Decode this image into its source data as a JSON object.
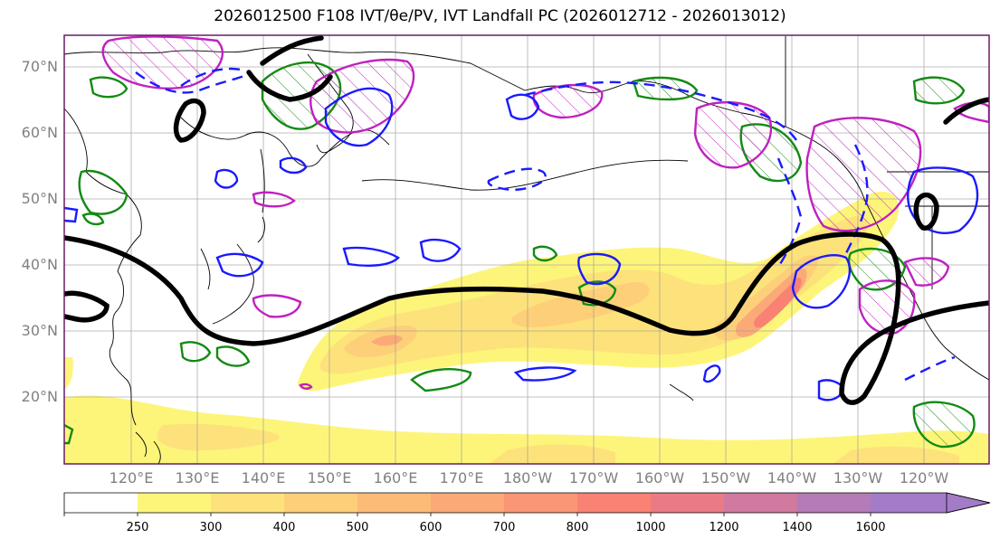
{
  "title": "2026012500 F108 IVT/θe/PV, IVT Landfall PC (2026012712 - 2026013012)",
  "map": {
    "lat_labels": [
      "70°N",
      "60°N",
      "50°N",
      "40°N",
      "30°N",
      "20°N"
    ],
    "lon_labels": [
      "120°E",
      "130°E",
      "140°E",
      "150°E",
      "160°E",
      "170°E",
      "180°W",
      "170°W",
      "160°W",
      "150°W",
      "140°W",
      "130°W",
      "120°W"
    ]
  },
  "colorbar": {
    "ticks": [
      "250",
      "300",
      "400",
      "500",
      "600",
      "700",
      "800",
      "1000",
      "1200",
      "1400",
      "1600"
    ],
    "colors": [
      "#ffffff",
      "#fdf57a",
      "#fde27b",
      "#fdcf79",
      "#fcbc78",
      "#fba977",
      "#fa9676",
      "#f98274",
      "#ea7b84",
      "#cf7a9e",
      "#b47bb8",
      "#a37cc8"
    ]
  },
  "colors": {
    "frame": "#6a1b6a",
    "contour_black": "#000000",
    "contour_blue": "#1a1aff",
    "contour_green": "#138a13",
    "contour_magenta": "#c020c0",
    "coast": "#000000",
    "grid": "#9a9a9a"
  }
}
